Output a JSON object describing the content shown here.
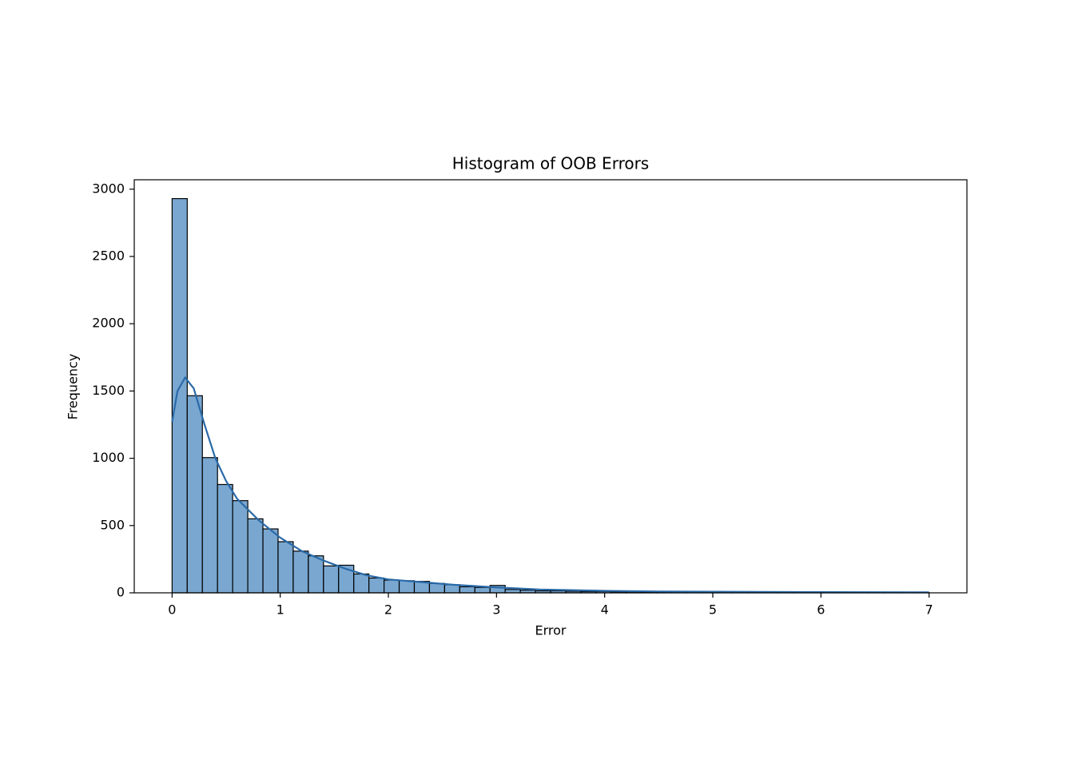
{
  "chart_data": {
    "type": "histogram",
    "title": "Histogram of OOB Errors",
    "x_label": "Error",
    "y_label": "Frequency",
    "bins": [
      0,
      0.14,
      0.28,
      0.42,
      0.56,
      0.7,
      0.84,
      0.98,
      1.12,
      1.26,
      1.4,
      1.54,
      1.68,
      1.82,
      1.96,
      2.1,
      2.24,
      2.38,
      2.52,
      2.66,
      2.8,
      2.94,
      3.08,
      3.22,
      3.36,
      3.5,
      3.64,
      3.78,
      3.92,
      4.06,
      4.2,
      4.34,
      4.48,
      4.62,
      4.76,
      4.9,
      5.04,
      5.18,
      5.32,
      5.46,
      5.6,
      5.74,
      5.88,
      6.02,
      6.16,
      6.3,
      6.44,
      6.58,
      6.72,
      6.86,
      7
    ],
    "counts": [
      2930,
      1465,
      1005,
      805,
      685,
      550,
      475,
      380,
      310,
      275,
      200,
      205,
      140,
      110,
      95,
      90,
      85,
      70,
      60,
      45,
      40,
      55,
      25,
      20,
      15,
      15,
      12,
      10,
      10,
      8,
      8,
      6,
      5,
      6,
      5,
      4,
      4,
      3,
      3,
      3,
      2,
      2,
      2,
      2,
      2,
      2,
      2,
      1,
      1,
      2
    ],
    "bar_color": "#79a7d0",
    "edge_color": "#000000",
    "kde": {
      "color": "#2a6aa8",
      "x": [
        0,
        0.05,
        0.12,
        0.2,
        0.3,
        0.4,
        0.5,
        0.6,
        0.8,
        1.0,
        1.2,
        1.4,
        1.6,
        1.8,
        2.0,
        2.3,
        2.6,
        3.0,
        3.4,
        4.0,
        4.5,
        5,
        6,
        7
      ],
      "y": [
        1270,
        1500,
        1600,
        1520,
        1250,
        1000,
        830,
        700,
        540,
        410,
        310,
        240,
        180,
        130,
        100,
        80,
        60,
        40,
        25,
        15,
        10,
        8,
        5,
        4
      ]
    },
    "xlim": [
      -0.35,
      7.35
    ],
    "ylim": [
      0,
      3070
    ],
    "xticks": [
      0,
      1,
      2,
      3,
      4,
      5,
      6,
      7
    ],
    "yticks": [
      0,
      500,
      1000,
      1500,
      2000,
      2500,
      3000
    ]
  }
}
